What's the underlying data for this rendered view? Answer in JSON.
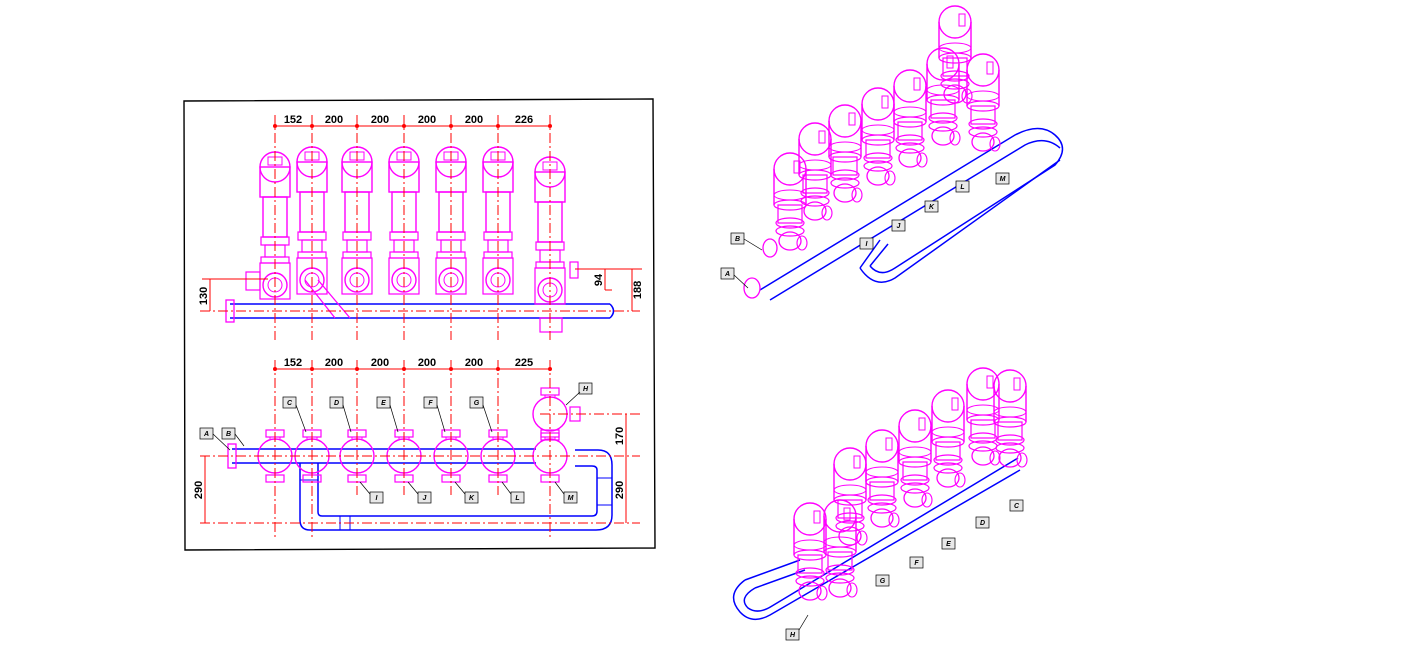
{
  "colors": {
    "valve": "#ff00ff",
    "pipe": "#0000ff",
    "dimension": "#ff0000",
    "frame": "#000000",
    "label_box": "#e8e8e8"
  },
  "top_view": {
    "spacings": [
      "152",
      "200",
      "200",
      "200",
      "200",
      "226"
    ],
    "heights": {
      "left": "130",
      "right_small": "94",
      "right_large": "188"
    }
  },
  "plan_view": {
    "spacings": [
      "152",
      "200",
      "200",
      "200",
      "200",
      "225"
    ],
    "heights": {
      "left": "290",
      "right_top": "170",
      "right_bottom": "290"
    },
    "labels_top": [
      "C",
      "D",
      "E",
      "F",
      "G"
    ],
    "labels_bottom": [
      "I",
      "J",
      "K",
      "L",
      "M"
    ],
    "label_a": "A",
    "label_b": "B",
    "label_h": "H"
  },
  "iso_top": {
    "labels": [
      "B",
      "A",
      "I",
      "J",
      "K",
      "L",
      "M"
    ]
  },
  "iso_bottom": {
    "labels": [
      "C",
      "D",
      "E",
      "F",
      "G",
      "H"
    ]
  }
}
